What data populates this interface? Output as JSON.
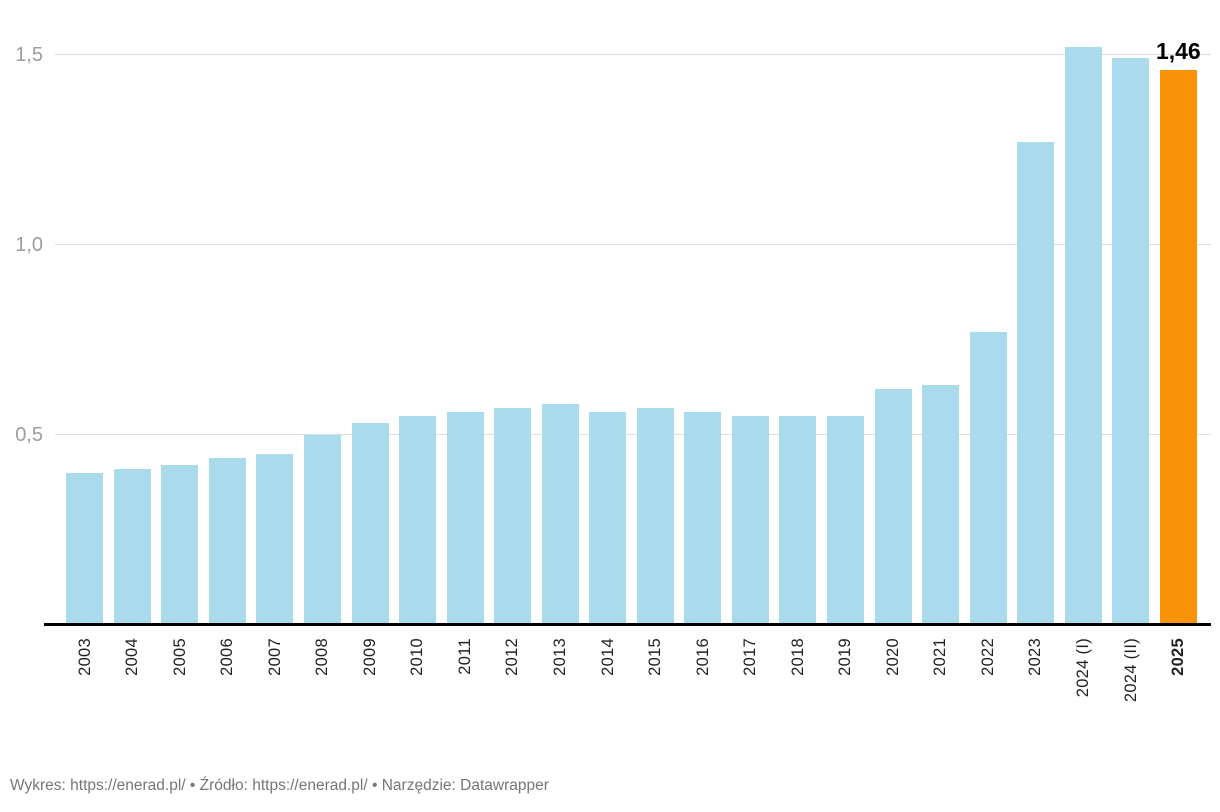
{
  "chart_data": {
    "type": "bar",
    "title": "",
    "categories": [
      "2003",
      "2004",
      "2005",
      "2006",
      "2007",
      "2008",
      "2009",
      "2010",
      "2011",
      "2012",
      "2013",
      "2014",
      "2015",
      "2016",
      "2017",
      "2018",
      "2019",
      "2020",
      "2021",
      "2022",
      "2023",
      "2024 (I)",
      "2024 (II)",
      "2025"
    ],
    "values": [
      0.4,
      0.41,
      0.42,
      0.44,
      0.45,
      0.5,
      0.53,
      0.55,
      0.56,
      0.57,
      0.58,
      0.56,
      0.57,
      0.56,
      0.55,
      0.55,
      0.55,
      0.62,
      0.63,
      0.77,
      1.27,
      1.52,
      1.49,
      1.46
    ],
    "xlabel": "",
    "ylabel": "",
    "ylim": [
      0,
      1.64
    ],
    "yticks": [
      {
        "value": 0.5,
        "label": "0,5"
      },
      {
        "value": 1.0,
        "label": "1,0"
      },
      {
        "value": 1.5,
        "label": "1,5"
      }
    ],
    "grid": "horizontal",
    "legend": null,
    "highlight": {
      "index": 23,
      "category": "2025",
      "label": "1,46"
    },
    "bold_categories": [
      "2025"
    ],
    "colors": {
      "bar": "#a9dbec",
      "highlight": "#f99408",
      "grid": "#dddddd",
      "axis_line": "#000000",
      "tick_text": "#9d9d9d",
      "category_text": "#222222",
      "value_label_text": "#000000"
    }
  },
  "footer": {
    "chart_label": "Wykres: ",
    "chart_link": "https://enerad.pl/",
    "separator1": " • ",
    "source_label": "Źródło: ",
    "source_link": "https://enerad.pl/",
    "separator2": " • ",
    "tool_label": "Narzędzie: ",
    "tool_link": "Datawrapper"
  }
}
